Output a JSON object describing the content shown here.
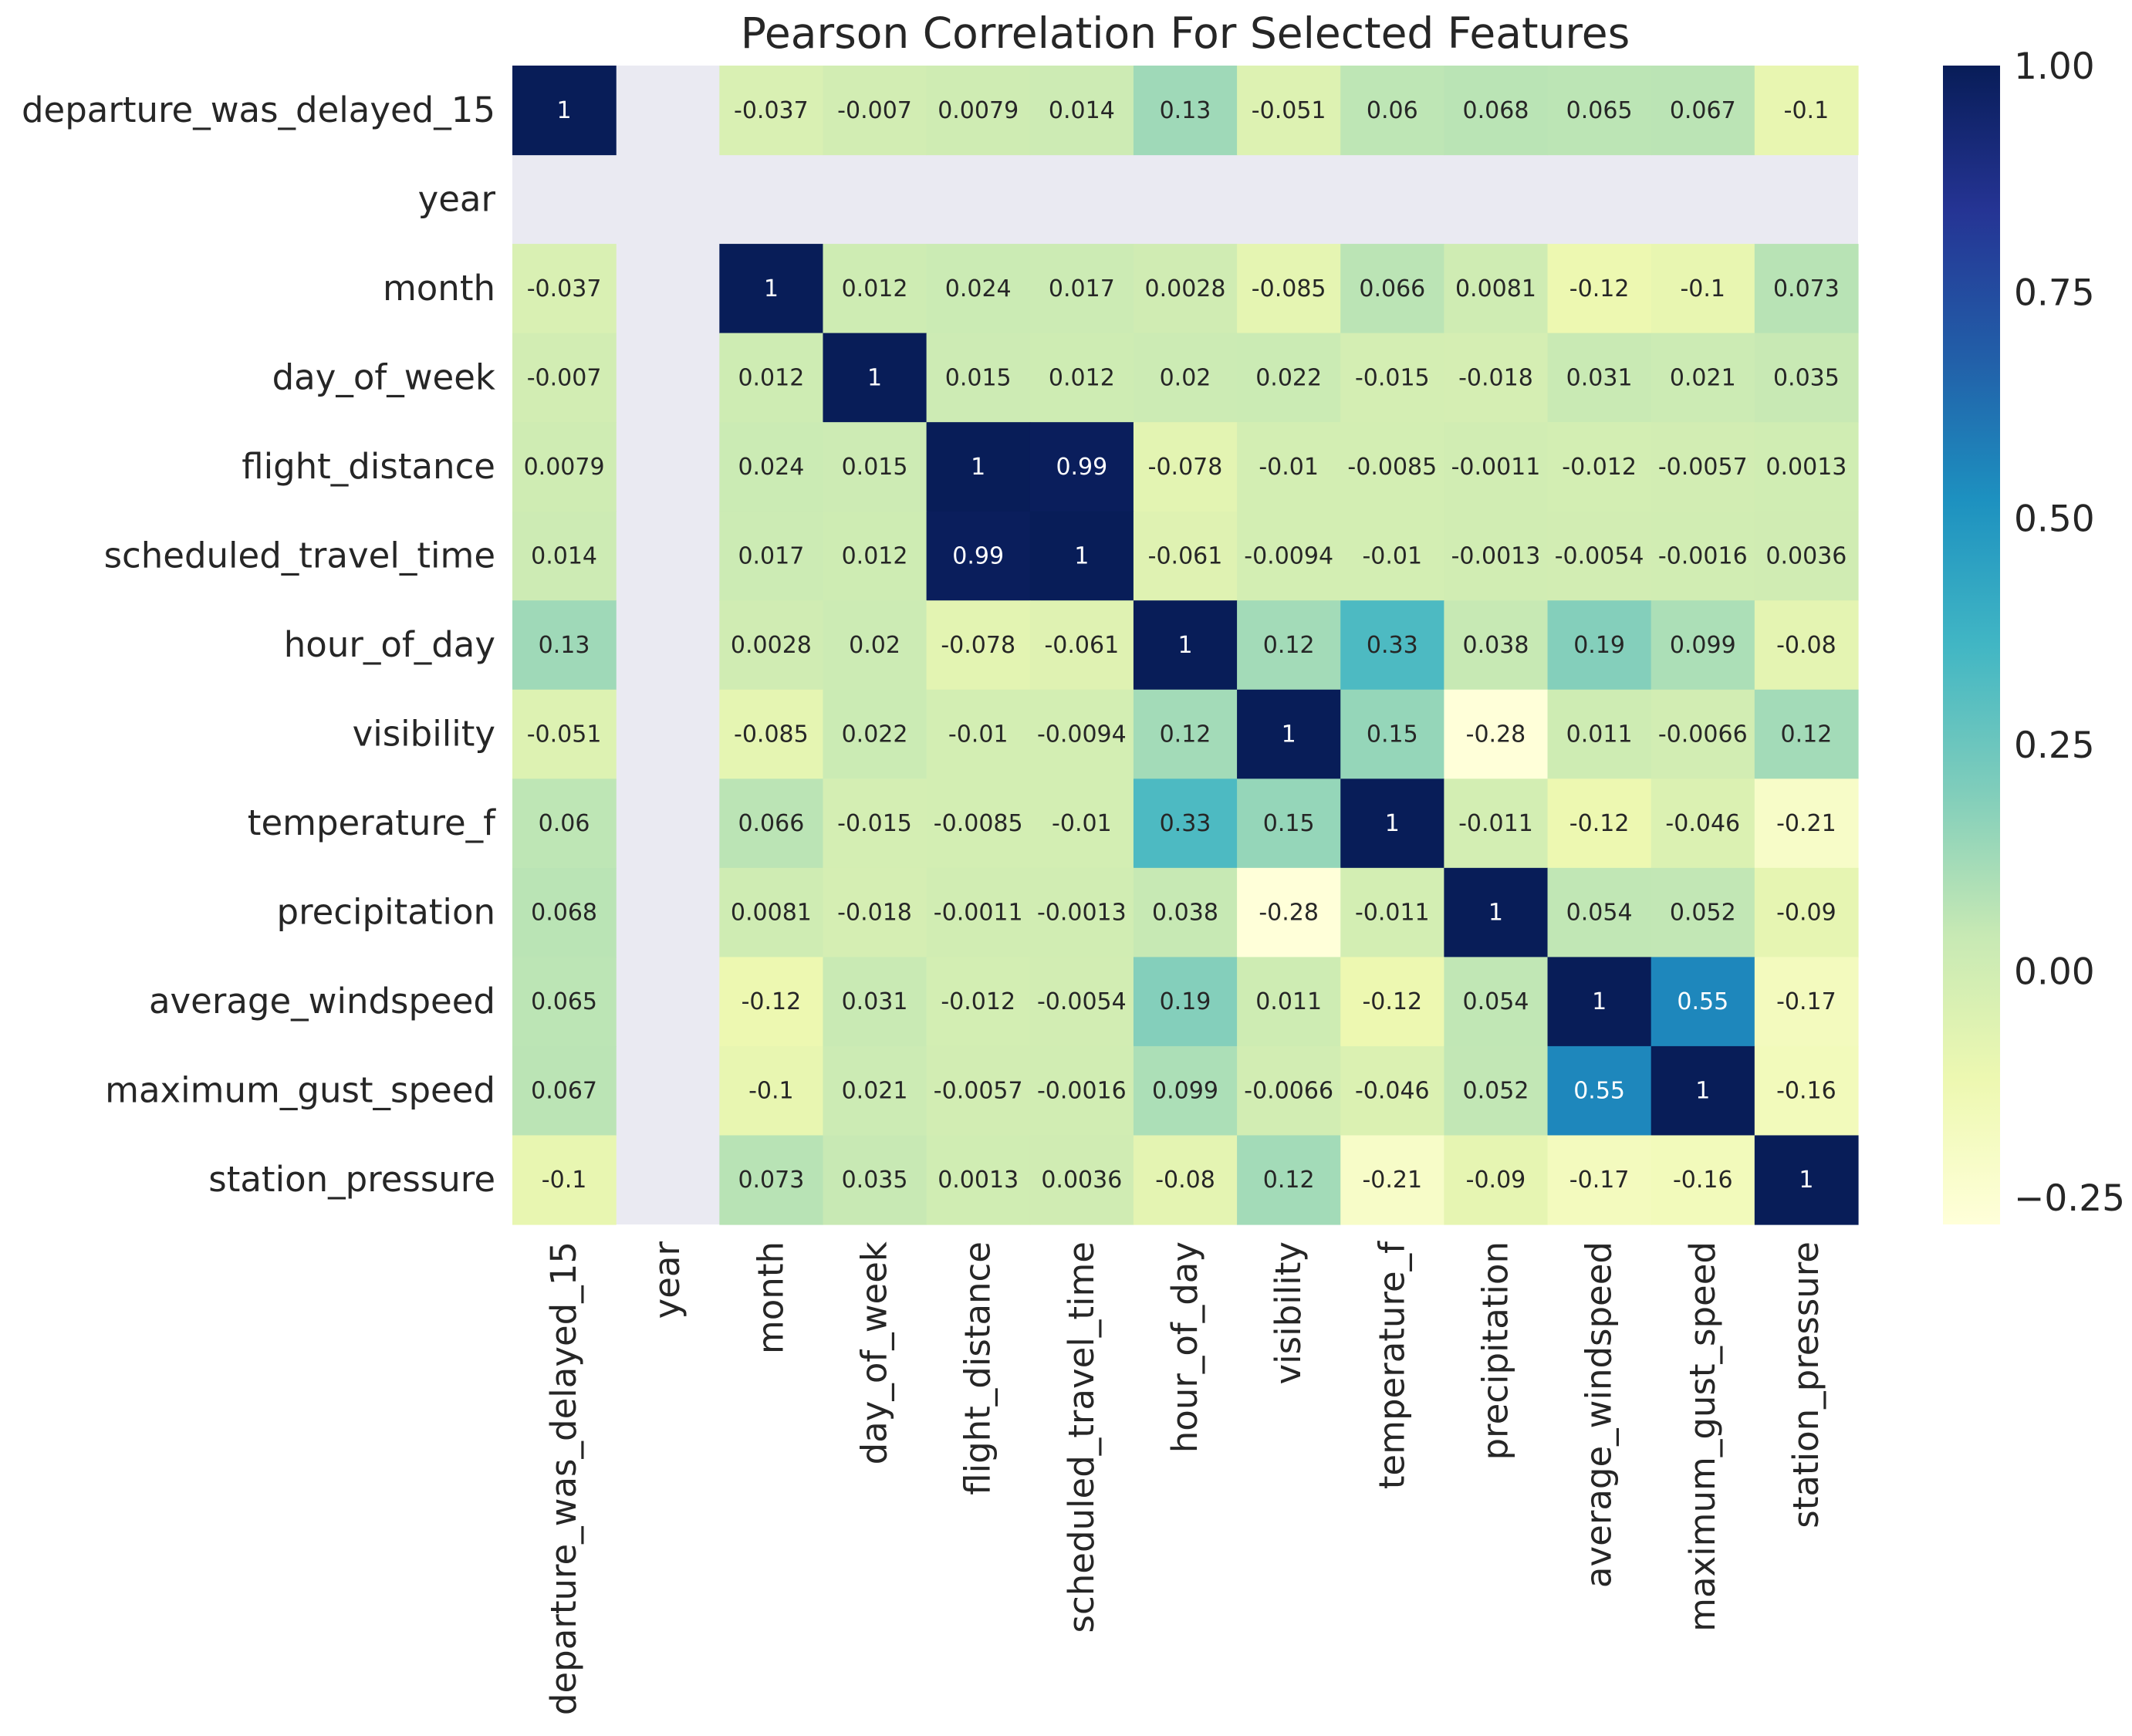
{
  "chart_data": {
    "type": "heatmap",
    "title": "Pearson Correlation For Selected Features",
    "xlabel": "",
    "ylabel": "",
    "labels": [
      "departure_was_delayed_15",
      "year",
      "month",
      "day_of_week",
      "flight_distance",
      "scheduled_travel_time",
      "hour_of_day",
      "visibility",
      "temperature_f",
      "precipitation",
      "average_windspeed",
      "maximum_gust_speed",
      "station_pressure"
    ],
    "annotations": [
      [
        "1",
        null,
        "-0.037",
        "-0.007",
        "0.0079",
        "0.014",
        "0.13",
        "-0.051",
        "0.06",
        "0.068",
        "0.065",
        "0.067",
        "-0.1"
      ],
      [
        null,
        null,
        null,
        null,
        null,
        null,
        null,
        null,
        null,
        null,
        null,
        null,
        null
      ],
      [
        "-0.037",
        null,
        "1",
        "0.012",
        "0.024",
        "0.017",
        "0.0028",
        "-0.085",
        "0.066",
        "0.0081",
        "-0.12",
        "-0.1",
        "0.073"
      ],
      [
        "-0.007",
        null,
        "0.012",
        "1",
        "0.015",
        "0.012",
        "0.02",
        "0.022",
        "-0.015",
        "-0.018",
        "0.031",
        "0.021",
        "0.035"
      ],
      [
        "0.0079",
        null,
        "0.024",
        "0.015",
        "1",
        "0.99",
        "-0.078",
        "-0.01",
        "-0.0085",
        "-0.0011",
        "-0.012",
        "-0.0057",
        "0.0013"
      ],
      [
        "0.014",
        null,
        "0.017",
        "0.012",
        "0.99",
        "1",
        "-0.061",
        "-0.0094",
        "-0.01",
        "-0.0013",
        "-0.0054",
        "-0.0016",
        "0.0036"
      ],
      [
        "0.13",
        null,
        "0.0028",
        "0.02",
        "-0.078",
        "-0.061",
        "1",
        "0.12",
        "0.33",
        "0.038",
        "0.19",
        "0.099",
        "-0.08"
      ],
      [
        "-0.051",
        null,
        "-0.085",
        "0.022",
        "-0.01",
        "-0.0094",
        "0.12",
        "1",
        "0.15",
        "-0.28",
        "0.011",
        "-0.0066",
        "0.12"
      ],
      [
        "0.06",
        null,
        "0.066",
        "-0.015",
        "-0.0085",
        "-0.01",
        "0.33",
        "0.15",
        "1",
        "-0.011",
        "-0.12",
        "-0.046",
        "-0.21"
      ],
      [
        "0.068",
        null,
        "0.0081",
        "-0.018",
        "-0.0011",
        "-0.0013",
        "0.038",
        "-0.28",
        "-0.011",
        "1",
        "0.054",
        "0.052",
        "-0.09"
      ],
      [
        "0.065",
        null,
        "-0.12",
        "0.031",
        "-0.012",
        "-0.0054",
        "0.19",
        "0.011",
        "-0.12",
        "0.054",
        "1",
        "0.55",
        "-0.17"
      ],
      [
        "0.067",
        null,
        "-0.1",
        "0.021",
        "-0.0057",
        "-0.0016",
        "0.099",
        "-0.0066",
        "-0.046",
        "0.052",
        "0.55",
        "1",
        "-0.16"
      ],
      [
        "-0.1",
        null,
        "0.073",
        "0.035",
        "0.0013",
        "0.0036",
        "-0.08",
        "0.12",
        "-0.21",
        "-0.09",
        "-0.17",
        "-0.16",
        "1"
      ]
    ],
    "colorbar": {
      "colormap": "YlGnBu",
      "vmin": -0.28,
      "vmax": 1.0,
      "ticks": [
        1.0,
        0.75,
        0.5,
        0.25,
        0.0,
        -0.25
      ],
      "tick_labels": [
        "1.00",
        "0.75",
        "0.50",
        "0.25",
        "0.00",
        "−0.25"
      ]
    },
    "missing_color": "#eaeaf2",
    "grid": false
  }
}
